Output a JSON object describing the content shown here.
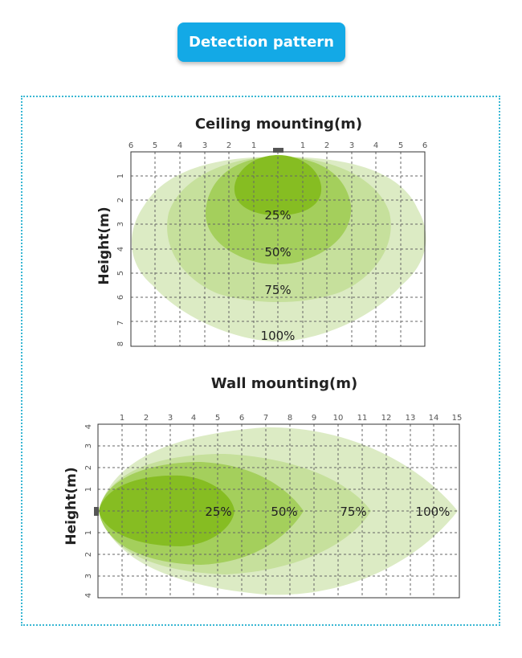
{
  "header": {
    "title": "Detection pattern"
  },
  "ceiling": {
    "title": "Ceiling mounting(m)",
    "ylabel": "Height(m)",
    "xticks": [
      "6",
      "5",
      "4",
      "3",
      "2",
      "1",
      "1",
      "2",
      "3",
      "4",
      "5",
      "6"
    ],
    "yticks": [
      "1",
      "2",
      "3",
      "4",
      "5",
      "6",
      "7",
      "8"
    ],
    "zones": [
      "25%",
      "50%",
      "75%",
      "100%"
    ]
  },
  "wall": {
    "title": "Wall mounting(m)",
    "ylabel": "Height(m)",
    "xticks": [
      "1",
      "2",
      "3",
      "4",
      "5",
      "6",
      "7",
      "8",
      "9",
      "10",
      "11",
      "12",
      "13",
      "14",
      "15"
    ],
    "yticks_top": [
      "4",
      "3",
      "2",
      "1"
    ],
    "yticks_bottom": [
      "1",
      "2",
      "3",
      "4"
    ],
    "zones": [
      "25%",
      "50%",
      "75%",
      "100%"
    ]
  },
  "colors": {
    "accent": "#13a9e6",
    "frame": "#3ab7d3",
    "zone_100": "#dcebc4",
    "zone_75": "#c6e09c",
    "zone_50": "#a4cf5c",
    "zone_25": "#86bd22",
    "sensor": "#555555"
  }
}
